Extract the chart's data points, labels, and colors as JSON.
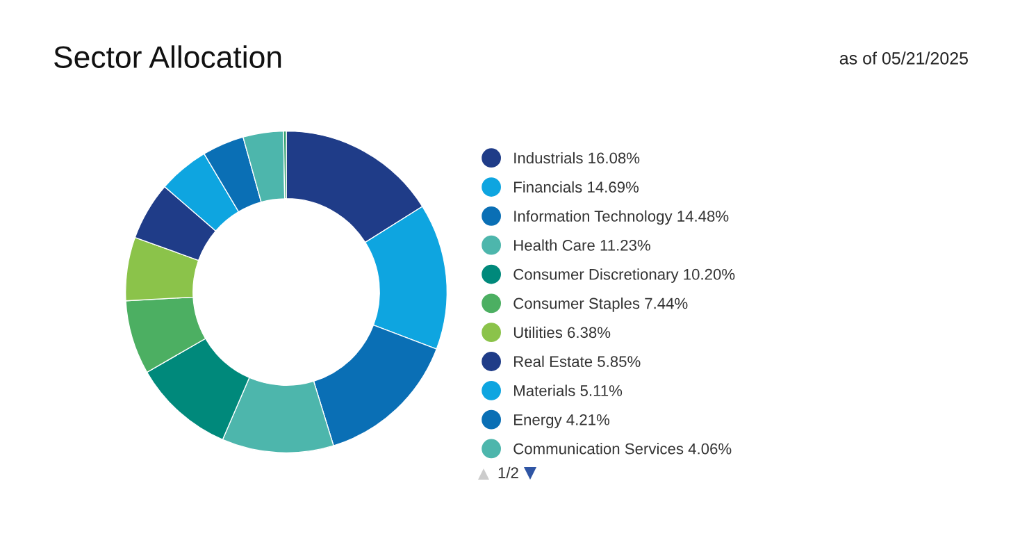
{
  "chart_data": {
    "type": "donut",
    "title": "Sector Allocation",
    "subtitle": "as of 05/21/2025",
    "categories": [
      "Industrials",
      "Financials",
      "Information Technology",
      "Health Care",
      "Consumer Discretionary",
      "Consumer Staples",
      "Utilities",
      "Real Estate",
      "Materials",
      "Energy",
      "Communication Services",
      null
    ],
    "values": [
      16.08,
      14.69,
      14.48,
      11.23,
      10.2,
      7.44,
      6.38,
      5.85,
      5.11,
      4.21,
      4.06,
      0.27
    ],
    "value_labels": [
      "16.08%",
      "14.69%",
      "14.48%",
      "11.23%",
      "10.20%",
      "7.44%",
      "6.38%",
      "5.85%",
      "5.11%",
      "4.21%",
      "4.06%",
      null
    ],
    "colors": [
      "#1f3c88",
      "#0ea5e0",
      "#0a6fb5",
      "#4db6ac",
      "#00897b",
      "#4caf62",
      "#8bc34a",
      "#1f3c88",
      "#0ea5e0",
      "#0a6fb5",
      "#4db6ac",
      "#2e9e6a"
    ],
    "legend": "right",
    "annotations": [
      "1/2"
    ]
  }
}
